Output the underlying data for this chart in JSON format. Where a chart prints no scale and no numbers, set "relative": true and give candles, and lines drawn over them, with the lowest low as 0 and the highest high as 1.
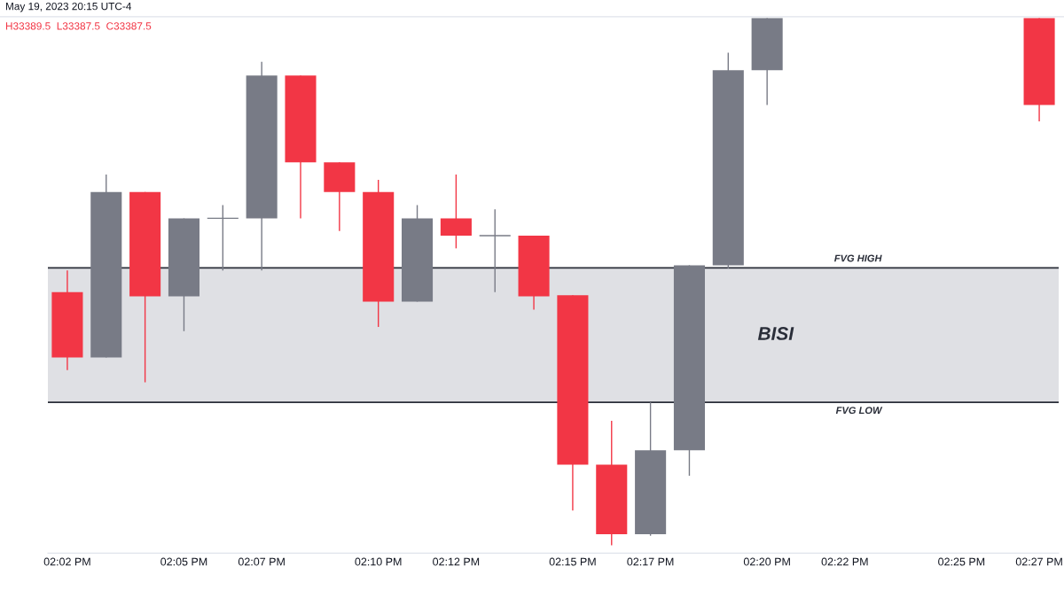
{
  "chart_data": {
    "type": "candlestick",
    "relative": true,
    "categories": [
      "02:02 PM",
      null,
      null,
      "02:05 PM",
      null,
      "02:07 PM",
      null,
      null,
      "02:10 PM",
      null,
      "02:12 PM",
      null,
      null,
      "02:15 PM",
      null,
      "02:17 PM",
      null,
      null,
      "02:20 PM",
      null,
      "02:22 PM",
      null,
      null,
      "02:25 PM",
      null,
      "02:27 PM"
    ],
    "ohlc": [
      [
        0.48,
        0.521,
        0.332,
        0.356
      ],
      [
        0.356,
        0.703,
        0.356,
        0.67
      ],
      [
        0.67,
        0.67,
        0.309,
        0.472
      ],
      [
        0.472,
        0.62,
        0.406,
        0.62
      ],
      [
        0.62,
        0.645,
        0.521,
        0.62
      ],
      [
        0.62,
        0.917,
        0.521,
        0.891
      ],
      [
        0.891,
        0.891,
        0.62,
        0.726
      ],
      [
        0.726,
        0.726,
        0.596,
        0.67
      ],
      [
        0.67,
        0.693,
        0.414,
        0.462
      ],
      [
        0.462,
        0.645,
        0.462,
        0.62
      ],
      [
        0.62,
        0.703,
        0.563,
        0.587
      ],
      [
        0.587,
        0.637,
        0.48,
        0.587
      ],
      [
        0.587,
        0.587,
        0.447,
        0.472
      ],
      [
        0.474,
        0.474,
        0.066,
        0.153
      ],
      [
        0.153,
        0.236,
        0.0,
        0.021
      ],
      [
        0.021,
        0.271,
        0.018,
        0.18
      ],
      [
        0.18,
        0.531,
        0.132,
        0.531
      ],
      [
        0.531,
        0.934,
        0.525,
        0.901
      ],
      [
        0.901,
        1.0,
        0.835,
        1.0
      ],
      null,
      null,
      null,
      null,
      null,
      null,
      [
        1.0,
        1.0,
        0.804,
        0.835
      ]
    ],
    "colors": [
      "#f23645",
      "#787b86",
      "#f23645",
      "#787b86",
      "#787b86",
      "#787b86",
      "#f23645",
      "#f23645",
      "#f23645",
      "#787b86",
      "#f23645",
      "#787b86",
      "#f23645",
      "#f23645",
      "#f23645",
      "#787b86",
      "#787b86",
      "#787b86",
      "#787b86",
      null,
      null,
      null,
      null,
      null,
      null,
      "#f23645"
    ],
    "bands": [
      {
        "axis": "y",
        "from": 0.271,
        "to": 0.526,
        "label": "BISI",
        "color": "#dfe0e4"
      }
    ],
    "ref_lines": [
      {
        "axis": "y",
        "value": 0.526,
        "label": "FVG HIGH",
        "color": "#2a2e39"
      },
      {
        "axis": "y",
        "value": 0.271,
        "label": "FVG LOW",
        "color": "#2a2e39"
      }
    ],
    "annotations": [
      "May 19, 2023 20:15 UTC-4",
      "H33389.5  L33387.5  C33387.5"
    ],
    "tick_labels": "x",
    "grid": false,
    "legend": false
  }
}
